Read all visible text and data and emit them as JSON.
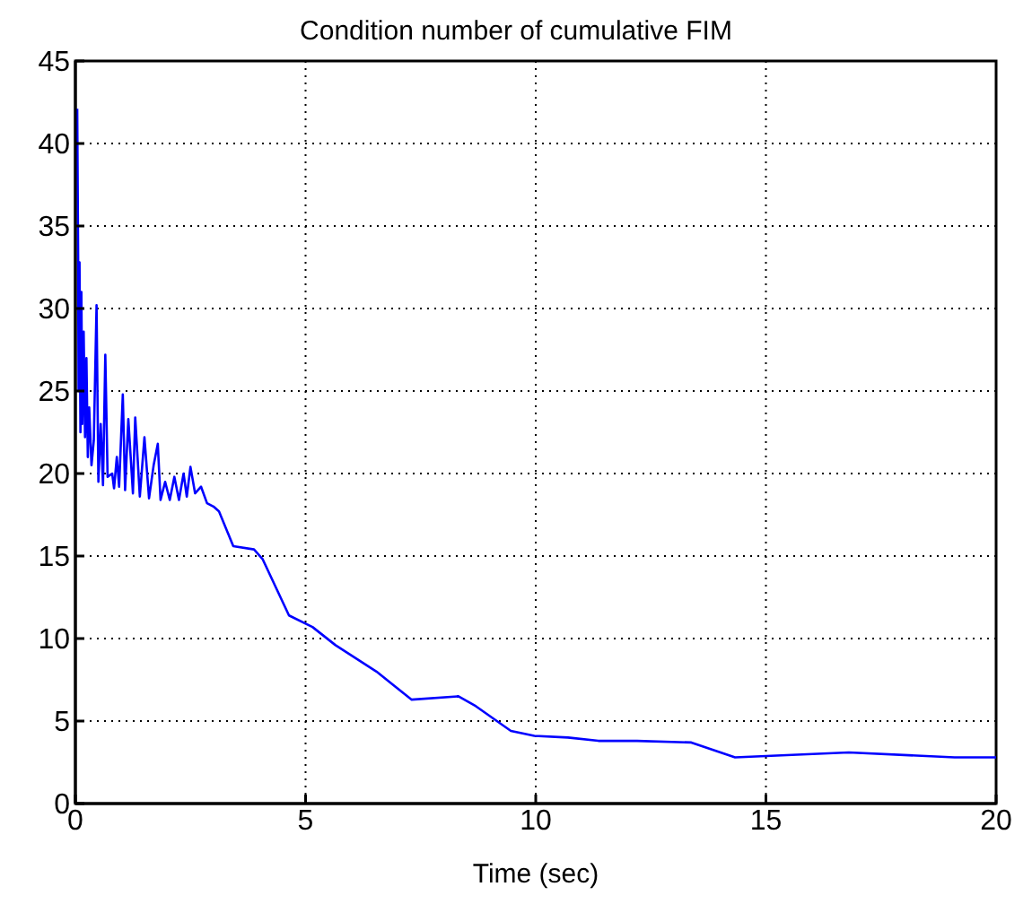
{
  "chart_data": {
    "type": "line",
    "title": "Condition number of cumulative FIM",
    "xlabel": "Time (sec)",
    "xlim": [
      0,
      20
    ],
    "xticks": [
      0,
      5,
      10,
      15,
      20
    ],
    "ylim": [
      0,
      45
    ],
    "yticks": [
      0,
      5,
      10,
      15,
      20,
      25,
      30,
      35,
      40,
      45
    ],
    "grid": true,
    "marker": "none",
    "line_style": "solid",
    "series": [
      {
        "color": "#0000ff",
        "x": [
          0.04,
          0.06,
          0.07,
          0.09,
          0.11,
          0.13,
          0.15,
          0.18,
          0.21,
          0.24,
          0.27,
          0.3,
          0.35,
          0.4,
          0.46,
          0.5,
          0.55,
          0.6,
          0.65,
          0.7,
          0.8,
          0.84,
          0.9,
          0.95,
          1.03,
          1.08,
          1.15,
          1.25,
          1.3,
          1.4,
          1.5,
          1.6,
          1.7,
          1.79,
          1.85,
          1.95,
          2.05,
          2.15,
          2.25,
          2.35,
          2.42,
          2.5,
          2.6,
          2.73,
          2.86,
          3.0,
          3.12,
          3.43,
          3.88,
          4.07,
          4.64,
          5.15,
          5.65,
          6.54,
          7.3,
          8.32,
          8.7,
          9.46,
          9.97,
          10.7,
          11.36,
          12.2,
          13.38,
          14.33,
          16.8,
          19.1,
          20
        ],
        "values": [
          42.1,
          33.1,
          25,
          32.8,
          22.5,
          31,
          23,
          28.6,
          22.2,
          27,
          21,
          24,
          20.5,
          22,
          30.2,
          19.5,
          23,
          19.3,
          27.2,
          19.8,
          20,
          19.1,
          21,
          19.2,
          24.8,
          19,
          23.3,
          18.8,
          23.4,
          18.6,
          22.2,
          18.5,
          20.5,
          21.8,
          18.4,
          19.5,
          18.4,
          19.8,
          18.4,
          20,
          18.6,
          20.4,
          18.8,
          19.2,
          18.2,
          18,
          17.7,
          15.6,
          15.4,
          14.8,
          11.4,
          10.7,
          9.6,
          8,
          6.3,
          6.5,
          5.9,
          4.4,
          4.1,
          4,
          3.8,
          3.8,
          3.7,
          2.8,
          3.1,
          2.8,
          2.8
        ]
      }
    ]
  }
}
